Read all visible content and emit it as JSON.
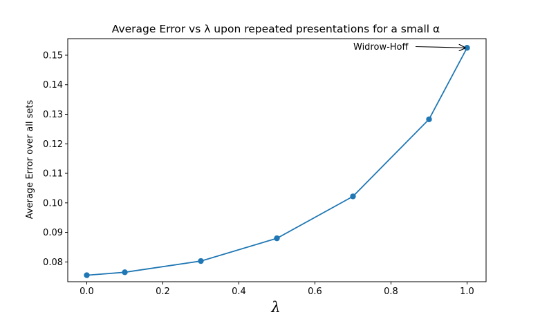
{
  "chart_data": {
    "type": "line",
    "title": "Average Error vs λ upon repeated presentations for a small α",
    "xlabel": "λ",
    "ylabel": "Average Error over all sets",
    "x": [
      0.0,
      0.1,
      0.3,
      0.5,
      0.7,
      0.9,
      1.0
    ],
    "series": [
      {
        "values": [
          0.0755,
          0.0765,
          0.0803,
          0.088,
          0.1022,
          0.1283,
          0.1525
        ]
      }
    ],
    "xlim": [
      -0.05,
      1.05
    ],
    "ylim": [
      0.0733,
      0.1556
    ],
    "xticks": [
      0.0,
      0.2,
      0.4,
      0.6,
      0.8,
      1.0
    ],
    "xtick_labels": [
      "0.0",
      "0.2",
      "0.4",
      "0.6",
      "0.8",
      "1.0"
    ],
    "yticks": [
      0.08,
      0.09,
      0.1,
      0.11,
      0.12,
      0.13,
      0.14,
      0.15
    ],
    "ytick_labels": [
      "0.08",
      "0.09",
      "0.10",
      "0.11",
      "0.12",
      "0.13",
      "0.14",
      "0.15"
    ],
    "grid": false,
    "legend": "none",
    "annotations": [
      {
        "text": "Widrow-Hoff",
        "x": 1.0,
        "y": 0.1525
      }
    ],
    "colors": {
      "series": "#1f77b4",
      "axes": "#000000"
    }
  }
}
